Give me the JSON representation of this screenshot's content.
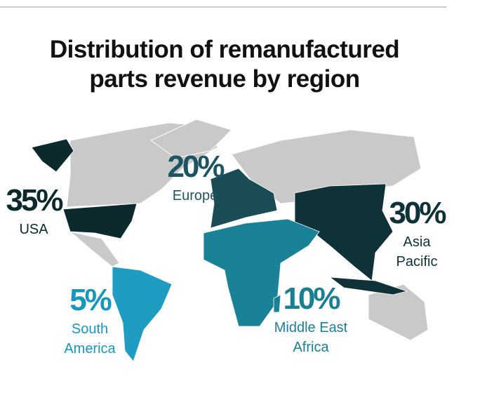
{
  "title": [
    "Distribution of remanufactured",
    "parts revenue by region"
  ],
  "regions": [
    {
      "name": [
        "USA"
      ],
      "value": 35,
      "value_label": "35%",
      "color": "#0c2a2e",
      "label_color": "#0c2a2e"
    },
    {
      "name": [
        "Europe"
      ],
      "value": 20,
      "value_label": "20%",
      "color": "#1a4c56",
      "label_color": "#1d5462"
    },
    {
      "name": [
        "Asia",
        "Pacific"
      ],
      "value": 30,
      "value_label": "30%",
      "color": "#0e3237",
      "label_color": "#0e3237"
    },
    {
      "name": [
        "Middle East",
        "Africa"
      ],
      "value": 10,
      "value_label": "10%",
      "color": "#1a8296",
      "label_color": "#1a7f93"
    },
    {
      "name": [
        "South",
        "America"
      ],
      "value": 5,
      "value_label": "5%",
      "color": "#1e9cc2",
      "label_color": "#1897bd"
    }
  ]
}
